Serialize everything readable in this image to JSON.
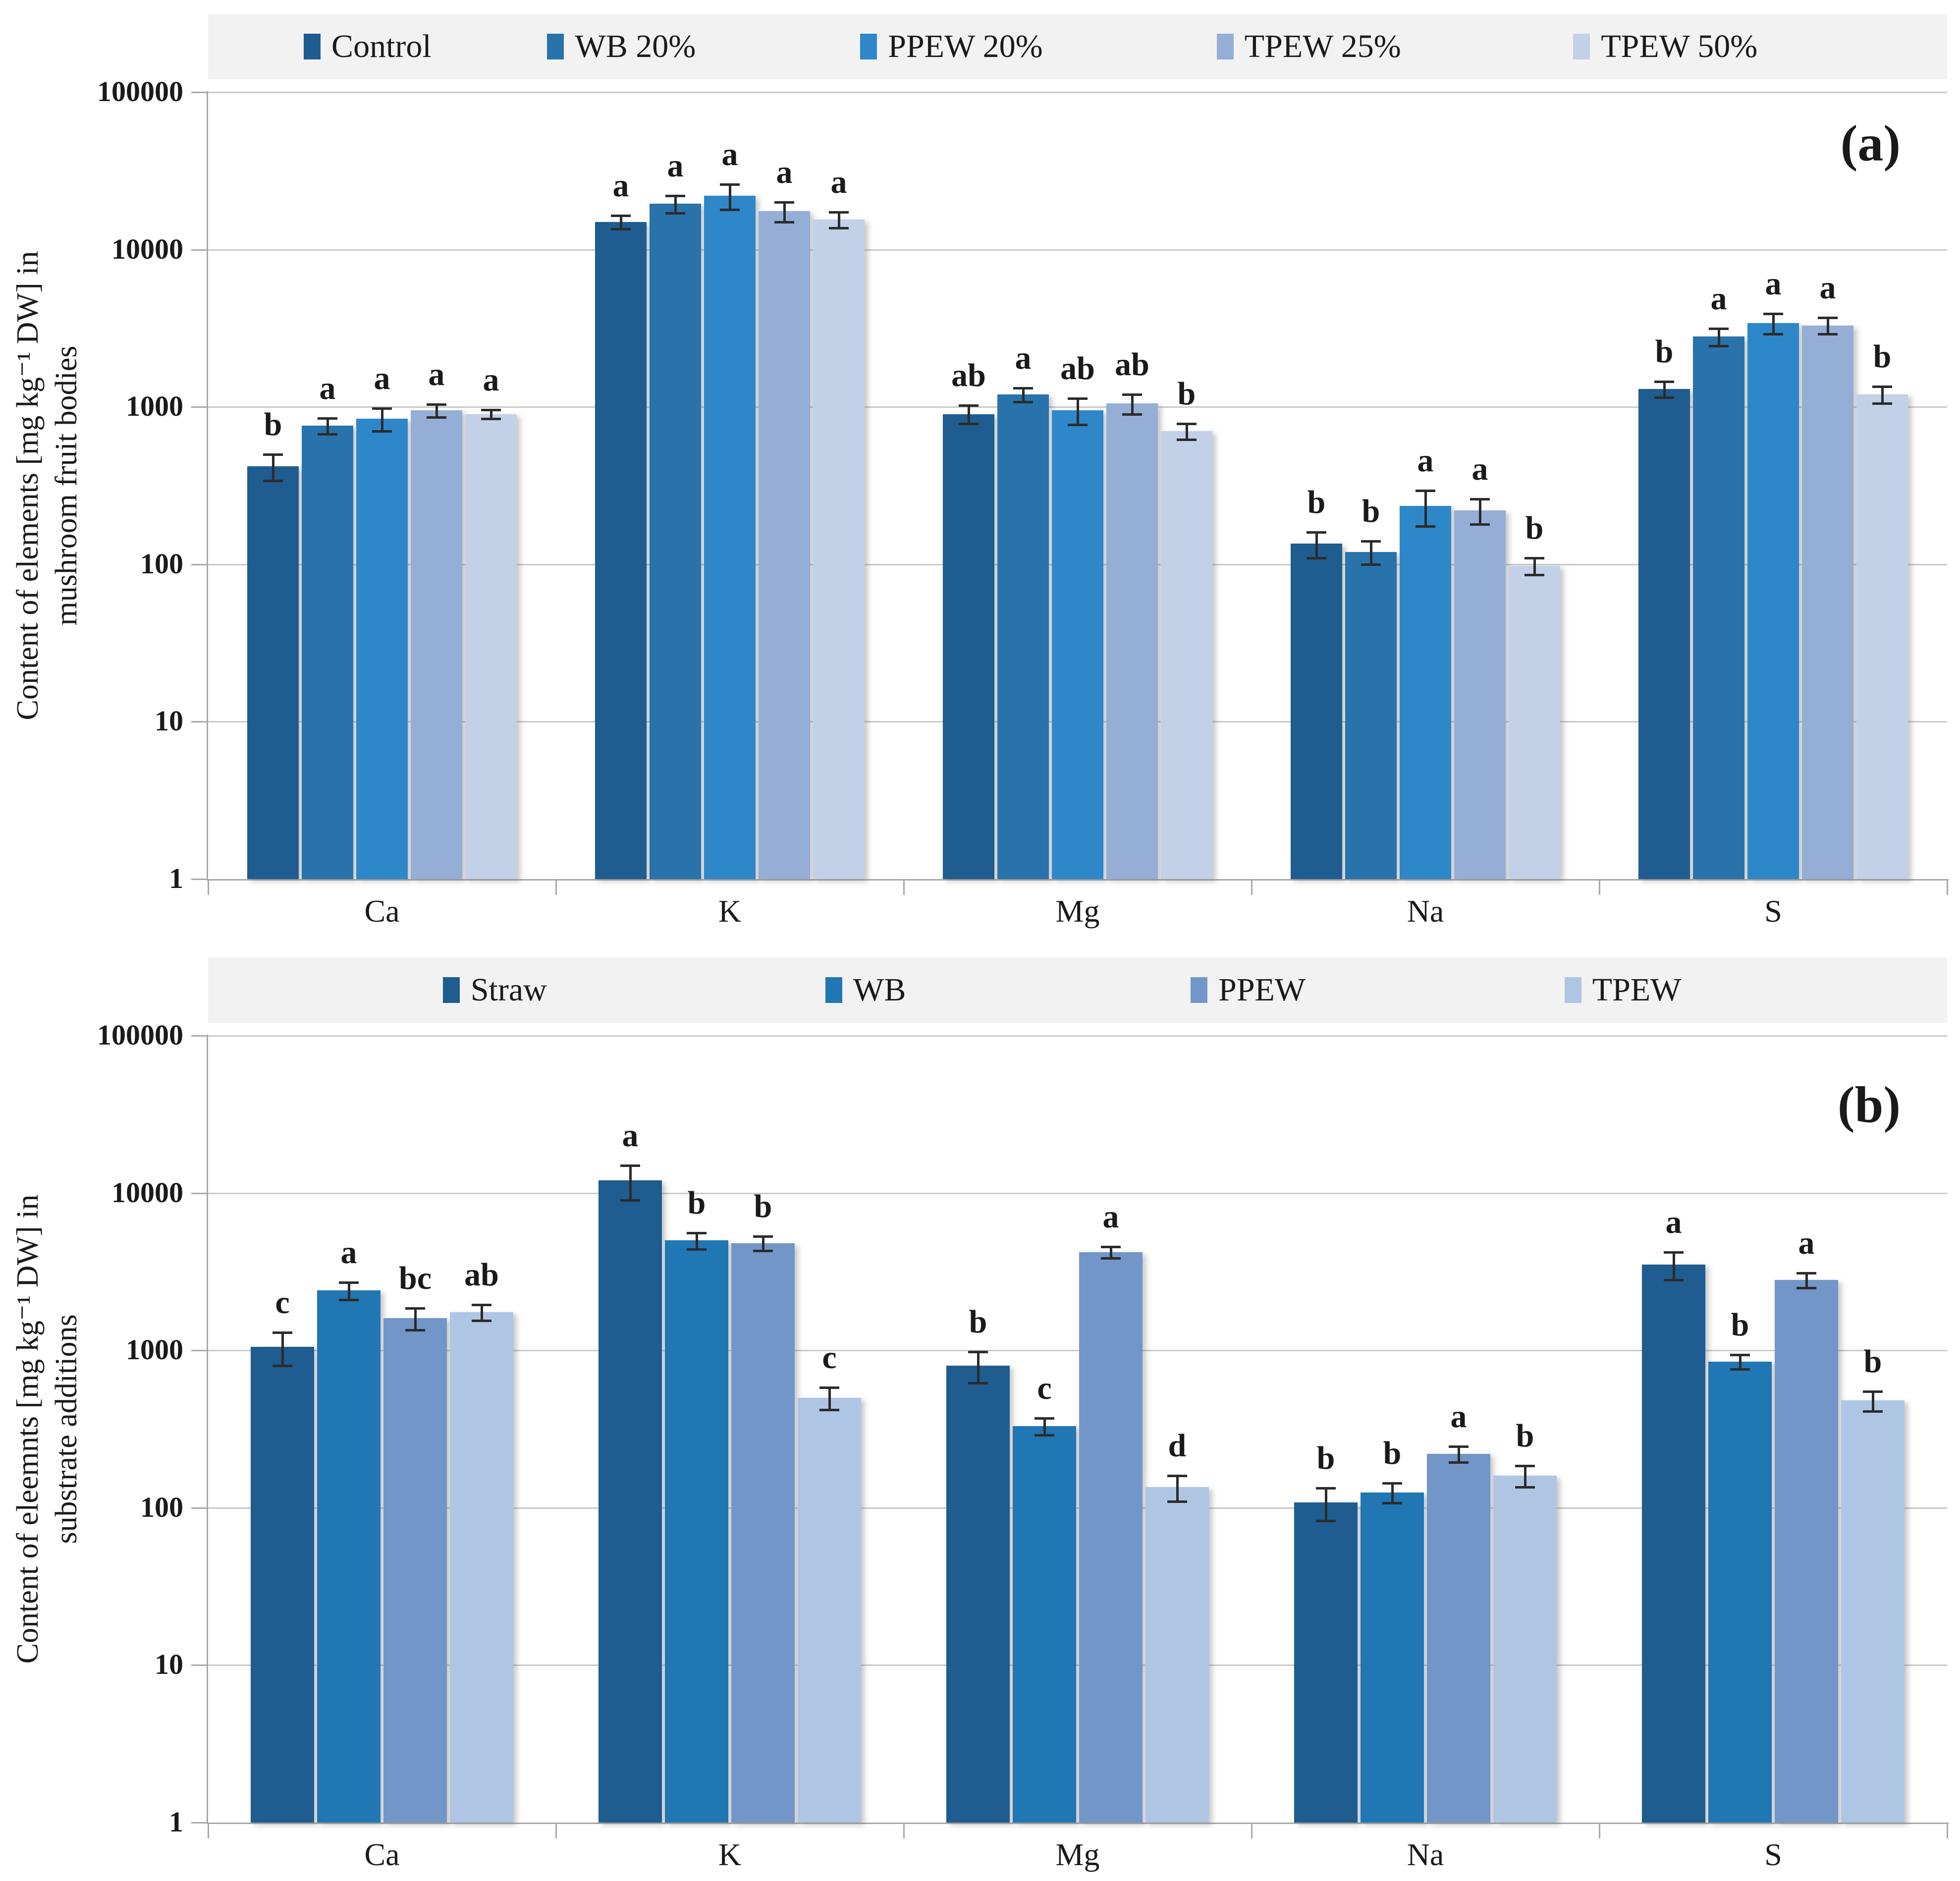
{
  "figure": {
    "panel_a_label": "(a)",
    "panel_b_label": "(b)"
  },
  "colors": {
    "legend_background": "#f2f2f2",
    "gridline": "#c9c9c9",
    "axis": "#a8a8a8",
    "error_bar": "#2b2b2b",
    "text": "#1a1a1a"
  },
  "chart_data": [
    {
      "type": "bar",
      "panel_label": "(a)",
      "y_axis_title_lines": [
        "Content of elements [mg kg⁻¹ DW] in",
        "mushroom fruit bodies"
      ],
      "y_scale": "log",
      "ylim": [
        1,
        100000
      ],
      "y_tick_labels": [
        "1",
        "10",
        "100",
        "1000",
        "10000",
        "100000"
      ],
      "categories": [
        "Ca",
        "K",
        "Mg",
        "Na",
        "S"
      ],
      "grid": true,
      "legend_position": "top",
      "series": [
        {
          "name": "Control",
          "color": "#1f5c8f",
          "values": [
            420,
            15000,
            900,
            135,
            1300
          ],
          "errors": [
            80,
            1500,
            120,
            25,
            150
          ],
          "letters": [
            "b",
            "a",
            "ab",
            "b",
            "b"
          ]
        },
        {
          "name": "WB 20%",
          "color": "#2873ac",
          "values": [
            760,
            19500,
            1200,
            120,
            2800
          ],
          "errors": [
            90,
            2500,
            120,
            20,
            350
          ],
          "letters": [
            "a",
            "a",
            "a",
            "b",
            "a"
          ]
        },
        {
          "name": "PPEW 20%",
          "color": "#2e87c8",
          "values": [
            840,
            22000,
            950,
            235,
            3400
          ],
          "errors": [
            140,
            4000,
            180,
            60,
            500
          ],
          "letters": [
            "a",
            "a",
            "ab",
            "a",
            "a"
          ]
        },
        {
          "name": "TPEW 25%",
          "color": "#94aed6",
          "values": [
            950,
            17500,
            1050,
            220,
            3300
          ],
          "errors": [
            90,
            2500,
            150,
            40,
            400
          ],
          "letters": [
            "a",
            "a",
            "ab",
            "a",
            "a"
          ]
        },
        {
          "name": "TPEW 50%",
          "color": "#c2d1e8",
          "values": [
            900,
            15500,
            700,
            98,
            1200
          ],
          "errors": [
            60,
            1800,
            80,
            12,
            150
          ],
          "letters": [
            "a",
            "a",
            "b",
            "b",
            "b"
          ]
        }
      ]
    },
    {
      "type": "bar",
      "panel_label": "(b)",
      "y_axis_title_lines": [
        "Content of eleemnts [mg kg⁻¹ DW] in",
        "substrate additions"
      ],
      "y_scale": "log",
      "ylim": [
        1,
        100000
      ],
      "y_tick_labels": [
        "1",
        "10",
        "100",
        "1000",
        "10000",
        "100000"
      ],
      "categories": [
        "Ca",
        "K",
        "Mg",
        "Na",
        "S"
      ],
      "grid": true,
      "legend_position": "top",
      "series": [
        {
          "name": "Straw",
          "color": "#1f5c8f",
          "values": [
            1050,
            12000,
            800,
            108,
            3500
          ],
          "errors": [
            250,
            3000,
            180,
            25,
            700
          ],
          "letters": [
            "c",
            "a",
            "b",
            "b",
            "a"
          ]
        },
        {
          "name": "WB",
          "color": "#2176b4",
          "values": [
            2400,
            5000,
            330,
            125,
            850
          ],
          "errors": [
            300,
            600,
            40,
            18,
            90
          ],
          "letters": [
            "a",
            "b",
            "c",
            "b",
            "b"
          ]
        },
        {
          "name": "PPEW",
          "color": "#7396c8",
          "values": [
            1600,
            4800,
            4200,
            220,
            2800
          ],
          "errors": [
            250,
            500,
            350,
            25,
            300
          ],
          "letters": [
            "bc",
            "b",
            "a",
            "a",
            "a"
          ]
        },
        {
          "name": "TPEW",
          "color": "#aec6e4",
          "values": [
            1750,
            500,
            135,
            160,
            480
          ],
          "errors": [
            200,
            80,
            25,
            25,
            70
          ],
          "letters": [
            "ab",
            "c",
            "d",
            "b",
            "b"
          ]
        }
      ]
    }
  ]
}
